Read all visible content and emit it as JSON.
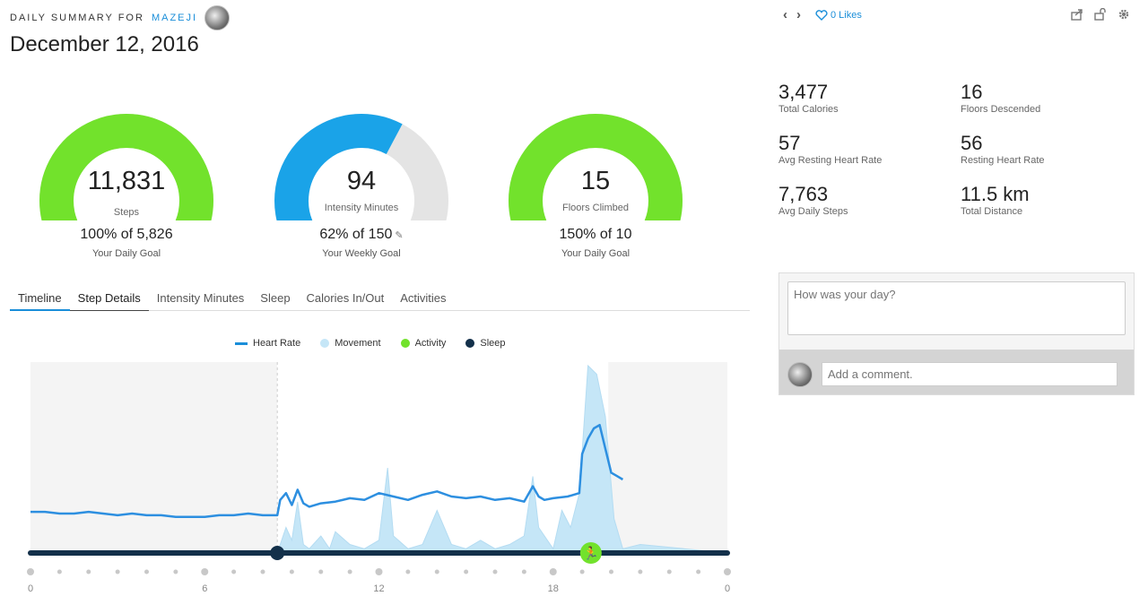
{
  "header": {
    "summary_label": "DAILY SUMMARY FOR",
    "user": "MAZEJI",
    "date": "December 12, 2016"
  },
  "nav": {
    "likes": "0 Likes"
  },
  "gauges": [
    {
      "value": "11,831",
      "caption": "Steps",
      "percent": "100% of 5,826",
      "goal": "Your Daily Goal",
      "fill_fraction": 1.0,
      "color": "#72e22c"
    },
    {
      "value": "94",
      "caption": "Intensity Minutes",
      "percent": "62% of 150",
      "goal": "Your Weekly Goal",
      "fill_fraction": 0.62,
      "color": "#1aa3e8"
    },
    {
      "value": "15",
      "caption": "Floors Climbed",
      "percent": "150% of 10",
      "goal": "Your Daily Goal",
      "fill_fraction": 1.0,
      "color": "#72e22c"
    }
  ],
  "tabs": [
    "Timeline",
    "Step Details",
    "Intensity Minutes",
    "Sleep",
    "Calories In/Out",
    "Activities"
  ],
  "legend": {
    "heart_rate": "Heart Rate",
    "movement": "Movement",
    "activity": "Activity",
    "sleep": "Sleep"
  },
  "colors": {
    "heart_rate": "#2d8fe0",
    "movement": "#c5e6f7",
    "activity": "#72e22c",
    "sleep": "#13304a",
    "accent": "#1a8ed9"
  },
  "stats": [
    {
      "value": "3,477",
      "label": "Total Calories"
    },
    {
      "value": "16",
      "label": "Floors Descended"
    },
    {
      "value": "57",
      "label": "Avg Resting Heart Rate"
    },
    {
      "value": "56",
      "label": "Resting Heart Rate"
    },
    {
      "value": "7,763",
      "label": "Avg Daily Steps"
    },
    {
      "value": "11.5 km",
      "label": "Total Distance"
    }
  ],
  "comments": {
    "day_placeholder": "How was your day?",
    "comment_placeholder": "Add a comment."
  },
  "chart_data": {
    "type": "line",
    "x_ticks": [
      "0",
      "6",
      "12",
      "18",
      "0"
    ],
    "x_range": [
      0,
      24
    ],
    "heart_rate": {
      "x": [
        0,
        0.5,
        1,
        1.5,
        2,
        2.5,
        3,
        3.5,
        4,
        4.5,
        5,
        5.5,
        6,
        6.5,
        7,
        7.5,
        8,
        8.5,
        8.6,
        8.8,
        9,
        9.2,
        9.4,
        9.6,
        10,
        10.5,
        11,
        11.5,
        12,
        12.5,
        13,
        13.5,
        14,
        14.5,
        15,
        15.5,
        16,
        16.5,
        17,
        17.3,
        17.5,
        17.7,
        18,
        18.5,
        18.9,
        19.0,
        19.2,
        19.4,
        19.6,
        19.8,
        20.0,
        20.2,
        20.4
      ],
      "y": [
        61,
        61,
        60,
        60,
        61,
        60,
        59,
        60,
        59,
        59,
        58,
        58,
        58,
        59,
        59,
        60,
        59,
        59,
        68,
        72,
        65,
        74,
        66,
        64,
        66,
        67,
        69,
        68,
        72,
        70,
        68,
        71,
        73,
        70,
        69,
        70,
        68,
        69,
        67,
        76,
        70,
        68,
        69,
        70,
        72,
        95,
        104,
        110,
        112,
        98,
        84,
        82,
        80
      ]
    },
    "movement": {
      "x": [
        0,
        8.5,
        8.8,
        9,
        9.2,
        9.4,
        9.6,
        10,
        10.3,
        10.5,
        11,
        11.5,
        12,
        12.3,
        12.5,
        13,
        13.5,
        14,
        14.5,
        15,
        15.5,
        16,
        16.5,
        17,
        17.3,
        17.5,
        17.8,
        18,
        18.3,
        18.6,
        18.9,
        19.2,
        19.5,
        19.8,
        20.1,
        20.4,
        21,
        24
      ],
      "y": [
        0,
        0,
        0.3,
        0.15,
        0.6,
        0.1,
        0.05,
        0.2,
        0.05,
        0.25,
        0.1,
        0.05,
        0.15,
        1.0,
        0.2,
        0.05,
        0.1,
        0.5,
        0.1,
        0.05,
        0.15,
        0.05,
        0.1,
        0.2,
        0.9,
        0.3,
        0.15,
        0.05,
        0.5,
        0.3,
        0.7,
        2.2,
        2.1,
        1.6,
        0.4,
        0.05,
        0.1,
        0
      ]
    },
    "sleep_end_hour": 8.5,
    "activity_hour": 19.3,
    "active_window": [
      8.5,
      19.9
    ]
  }
}
